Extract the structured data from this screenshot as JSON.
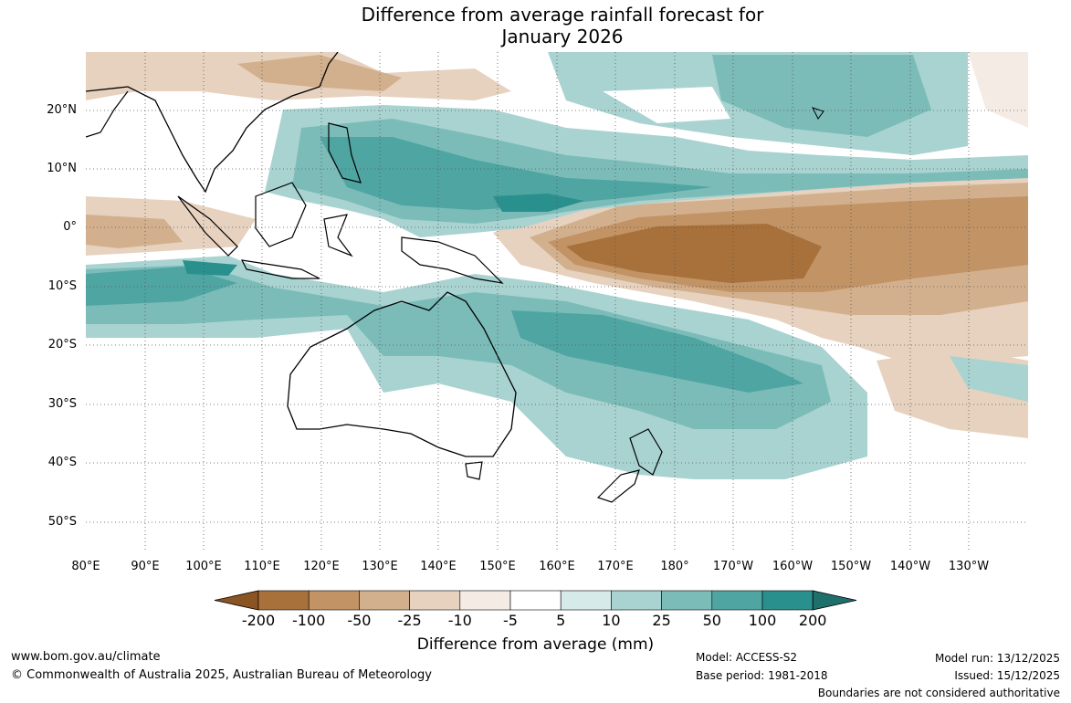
{
  "title": {
    "line1": "Difference from average rainfall forecast for",
    "line2": "January 2026"
  },
  "map": {
    "lat_labels": [
      "20°N",
      "10°N",
      "0°",
      "10°S",
      "20°S",
      "30°S",
      "40°S",
      "50°S"
    ],
    "lon_labels": [
      "80°E",
      "90°E",
      "100°E",
      "110°E",
      "120°E",
      "130°E",
      "140°E",
      "150°E",
      "160°E",
      "170°E",
      "180°",
      "170°W",
      "160°W",
      "150°W",
      "140°W",
      "130°W"
    ]
  },
  "colorbar": {
    "labels": [
      "-200",
      "-100",
      "-50",
      "-25",
      "-10",
      "-5",
      "5",
      "10",
      "25",
      "50",
      "100",
      "200"
    ],
    "colors": [
      "#8b5423",
      "#a8703a",
      "#c29365",
      "#d3b08d",
      "#e6d2bf",
      "#f4ebe4",
      "#ffffff",
      "#d5eae9",
      "#a9d3d1",
      "#7bbcb9",
      "#4fa5a2",
      "#2a908d",
      "#1f6f6c"
    ],
    "title": "Difference from average (mm)"
  },
  "footer": {
    "website": "www.bom.gov.au/climate",
    "copyright": "© Commonwealth of Australia 2025, Australian Bureau of Meteorology",
    "model": "Model: ACCESS-S2",
    "base_period": "Base period: 1981-2018",
    "model_run": "Model run: 13/12/2025",
    "issued": "Issued: 15/12/2025",
    "disclaimer": "Boundaries are not considered authoritative"
  }
}
